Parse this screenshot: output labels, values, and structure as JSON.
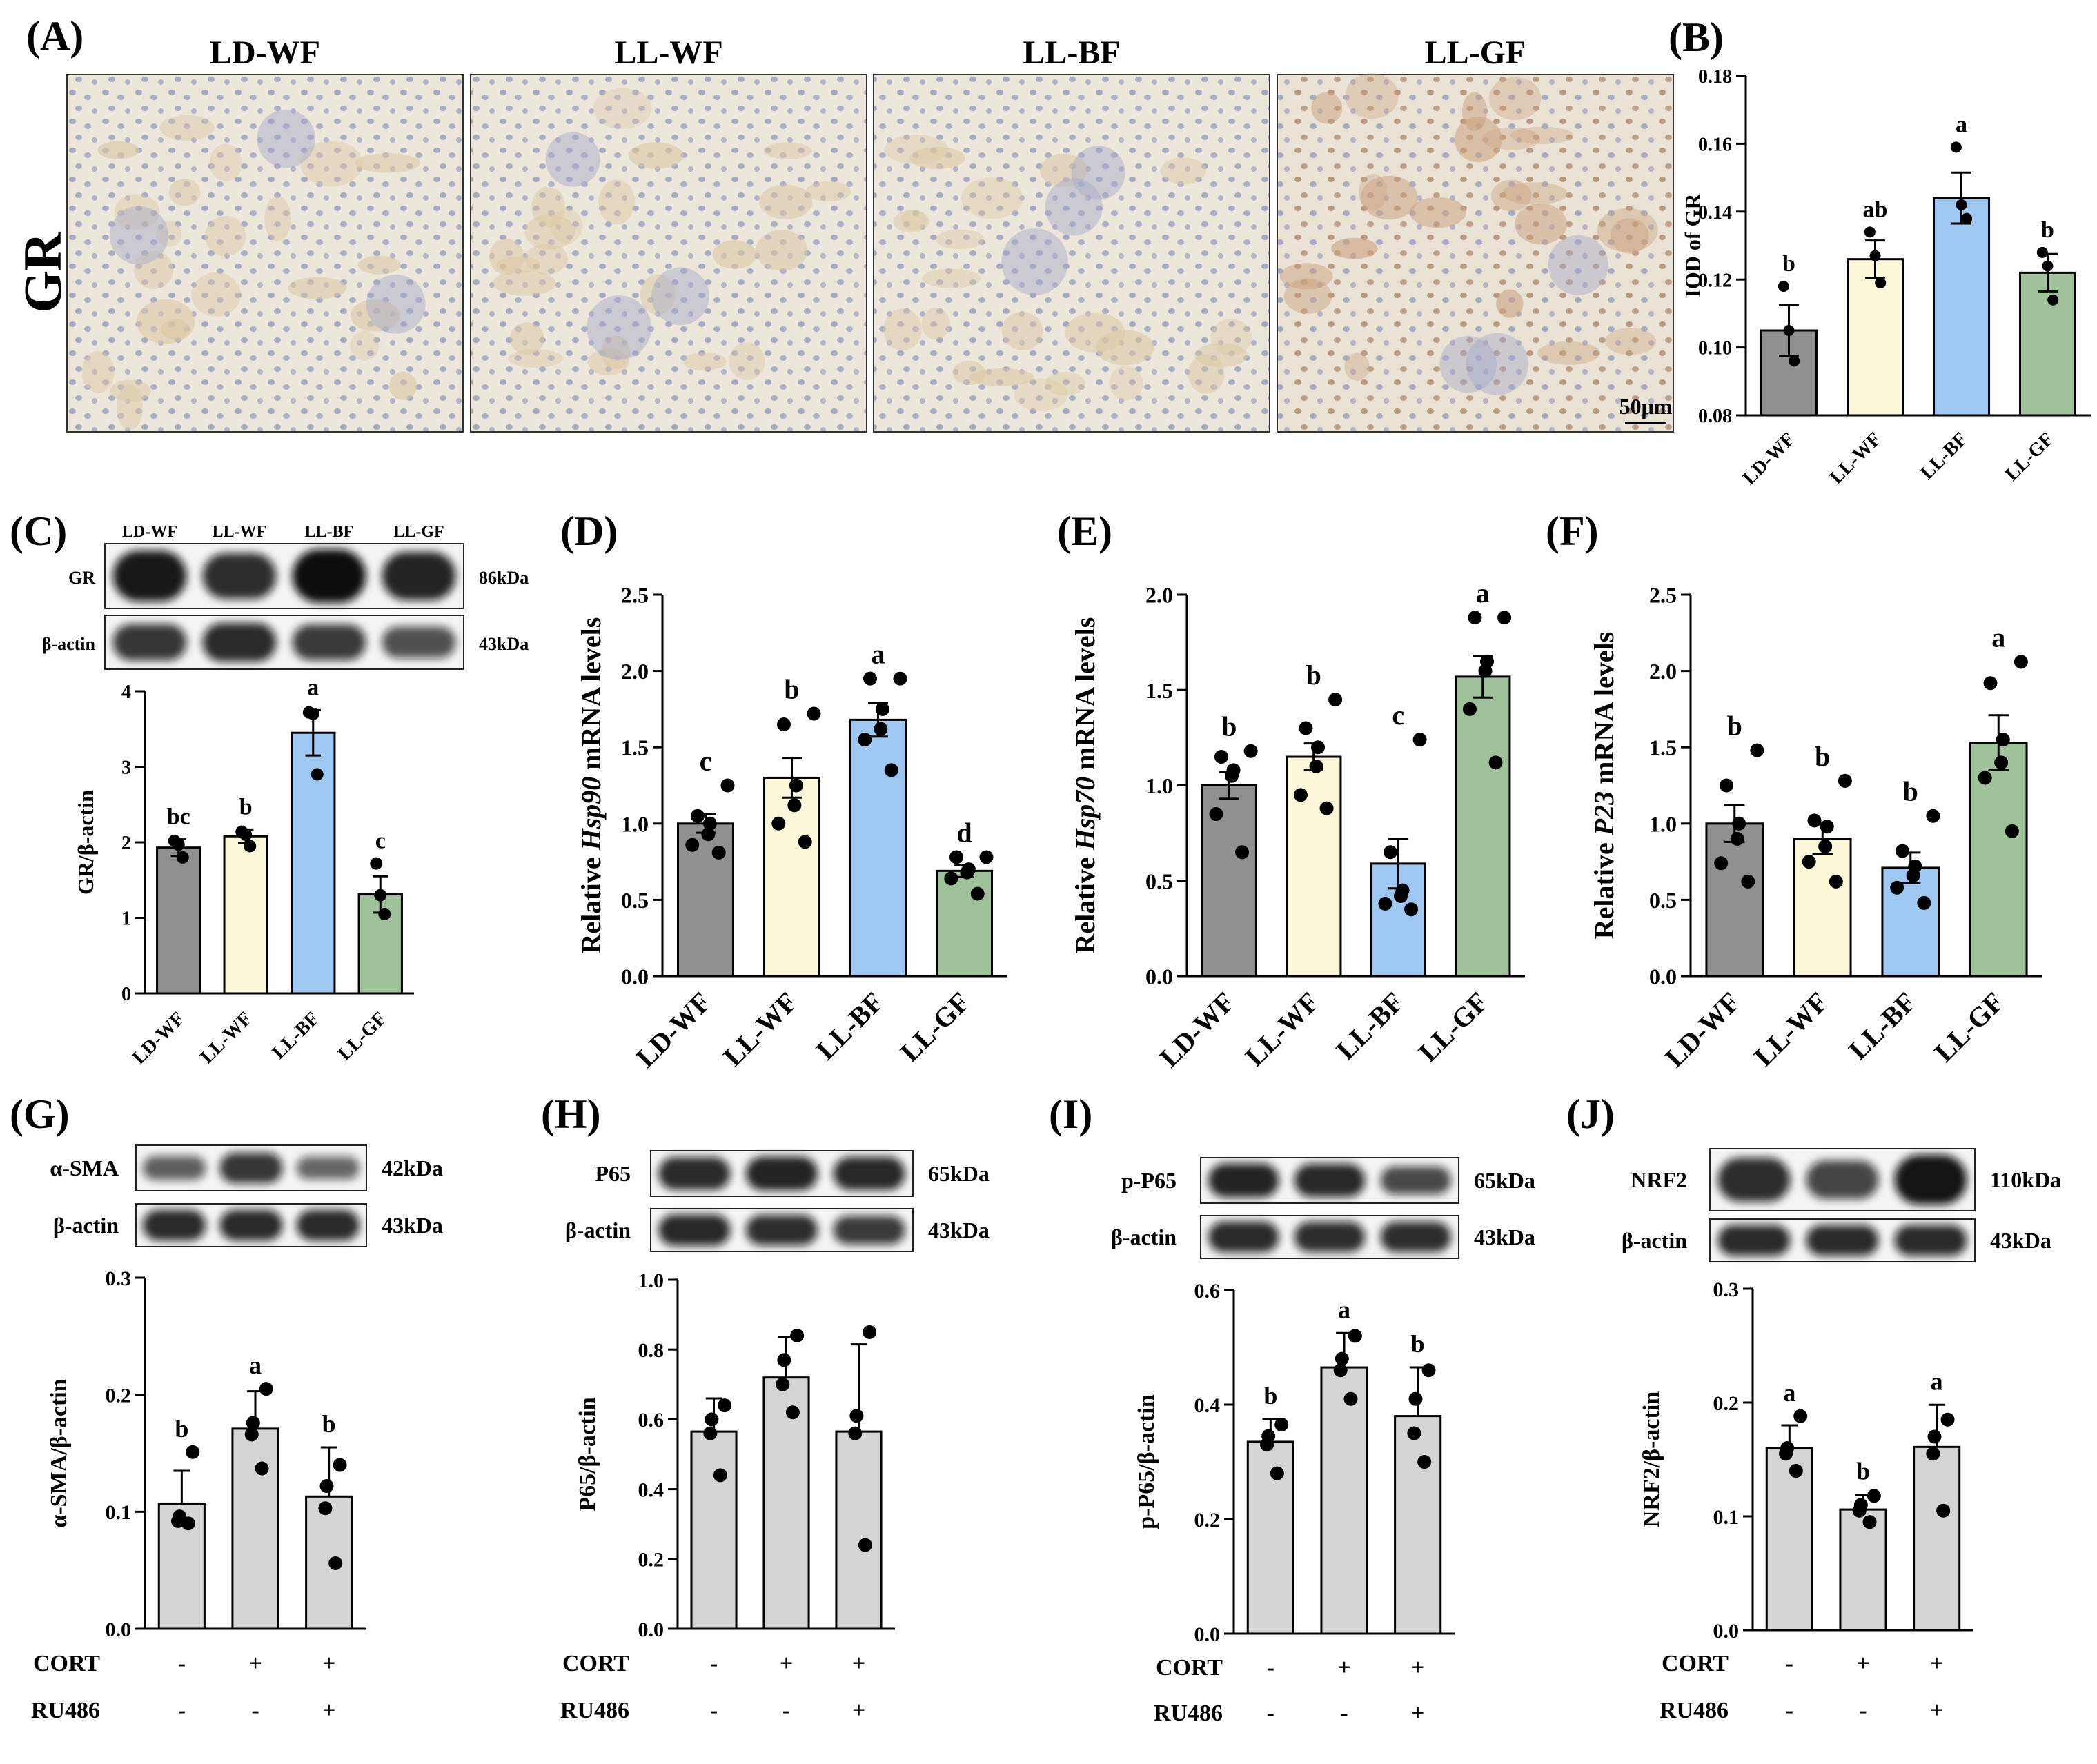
{
  "colors": {
    "LD-WF": "#909090",
    "LL-WF": "#fbf7d8",
    "LL-BF": "#9ec8f1",
    "LL-GF": "#9fc29a",
    "treatment": "#d4d4d4",
    "ihc_bg": "#ece6db",
    "ihc_nucleus": "#8e95b8",
    "ihc_tubule": "#dbc7a3",
    "ihc_gr_nucleus": "#8e5c3a"
  },
  "panelA": {
    "panel_label": "(A)",
    "row_label": "GR",
    "image_titles": [
      "LD-WF",
      "LL-WF",
      "LL-BF",
      "LL-GF"
    ],
    "scale_bar": "50μm"
  },
  "blots": {
    "C": {
      "lanes": [
        "LD-WF",
        "LL-WF",
        "LL-BF",
        "LL-GF"
      ],
      "rows": [
        {
          "name": "GR",
          "size": "86kDa",
          "intensity": [
            0.92,
            0.78,
            1.0,
            0.85
          ]
        },
        {
          "name": "β-actin",
          "size": "43kDa",
          "intensity": [
            0.72,
            0.8,
            0.7,
            0.55
          ]
        }
      ]
    },
    "G": {
      "rows": [
        {
          "name": "α-SMA",
          "size": "42kDa",
          "intensity": [
            0.45,
            0.72,
            0.4
          ]
        },
        {
          "name": "β-actin",
          "size": "43kDa",
          "intensity": [
            0.8,
            0.8,
            0.8
          ]
        }
      ]
    },
    "H": {
      "rows": [
        {
          "name": "P65",
          "size": "65kDa",
          "intensity": [
            0.8,
            0.85,
            0.82
          ]
        },
        {
          "name": "β-actin",
          "size": "43kDa",
          "intensity": [
            0.82,
            0.78,
            0.7
          ]
        }
      ]
    },
    "I": {
      "rows": [
        {
          "name": "p-P65",
          "size": "65kDa",
          "intensity": [
            0.85,
            0.82,
            0.6
          ]
        },
        {
          "name": "β-actin",
          "size": "43kDa",
          "intensity": [
            0.8,
            0.78,
            0.78
          ]
        }
      ]
    },
    "J": {
      "rows": [
        {
          "name": "NRF2",
          "size": "110kDa",
          "intensity": [
            0.78,
            0.62,
            0.95
          ]
        },
        {
          "name": "β-actin",
          "size": "43kDa",
          "intensity": [
            0.8,
            0.8,
            0.8
          ]
        }
      ]
    }
  },
  "chart_data": [
    {
      "panel": "(B)",
      "type": "bar",
      "ylabel": "IOD of GR",
      "ylim": [
        0.08,
        0.18
      ],
      "yticks": [
        "0.08",
        "0.10",
        "0.12",
        "0.14",
        "0.16",
        "0.18"
      ],
      "categories": [
        "LD-WF",
        "LL-WF",
        "LL-BF",
        "LL-GF"
      ],
      "values": [
        0.105,
        0.126,
        0.144,
        0.122
      ],
      "sem": [
        0.0075,
        0.0055,
        0.0075,
        0.0055
      ],
      "points": [
        [
          0.096,
          0.105,
          0.118
        ],
        [
          0.119,
          0.127,
          0.134
        ],
        [
          0.138,
          0.142,
          0.159
        ],
        [
          0.114,
          0.124,
          0.128
        ]
      ],
      "letters": [
        "b",
        "ab",
        "a",
        "b"
      ],
      "xlabels_rotated": true
    },
    {
      "panel": "(C)",
      "type": "bar",
      "ylabel": "GR/β-actin",
      "ylim": [
        0,
        4
      ],
      "yticks": [
        "0",
        "1",
        "2",
        "3",
        "4"
      ],
      "categories": [
        "LD-WF",
        "LL-WF",
        "LL-BF",
        "LL-GF"
      ],
      "values": [
        1.93,
        2.08,
        3.45,
        1.31
      ],
      "sem": [
        0.11,
        0.09,
        0.3,
        0.24
      ],
      "points": [
        [
          1.8,
          1.97,
          2.02
        ],
        [
          1.95,
          2.1,
          2.14
        ],
        [
          2.9,
          3.7,
          3.72
        ],
        [
          1.05,
          1.3,
          1.72
        ]
      ],
      "letters": [
        "bc",
        "b",
        "a",
        "c"
      ],
      "xlabels_rotated": true
    },
    {
      "panel": "(D)",
      "type": "bar",
      "ylabel_parts": [
        "Relative ",
        "Hsp90",
        " mRNA levels"
      ],
      "ylim": [
        0,
        2.5
      ],
      "yticks": [
        "0.0",
        "0.5",
        "1.0",
        "1.5",
        "2.0",
        "2.5"
      ],
      "categories": [
        "LD-WF",
        "LL-WF",
        "LL-BF",
        "LL-GF"
      ],
      "values": [
        1.0,
        1.3,
        1.68,
        0.69
      ],
      "sem": [
        0.06,
        0.13,
        0.11,
        0.04
      ],
      "points": [
        [
          0.81,
          0.86,
          0.93,
          1.0,
          1.05,
          1.25
        ],
        [
          0.88,
          1.0,
          1.12,
          1.25,
          1.65,
          1.72
        ],
        [
          1.35,
          1.55,
          1.62,
          1.75,
          1.95,
          1.95
        ],
        [
          0.54,
          0.64,
          0.68,
          0.7,
          0.78,
          0.78
        ]
      ],
      "letters": [
        "c",
        "b",
        "a",
        "d"
      ],
      "xlabels_rotated": true
    },
    {
      "panel": "(E)",
      "type": "bar",
      "ylabel_parts": [
        "Relative ",
        "Hsp70",
        " mRNA levels"
      ],
      "ylim": [
        0,
        2.0
      ],
      "yticks": [
        "0.0",
        "0.5",
        "1.0",
        "1.5",
        "2.0"
      ],
      "categories": [
        "LD-WF",
        "LL-WF",
        "LL-BF",
        "LL-GF"
      ],
      "values": [
        1.0,
        1.15,
        0.59,
        1.57
      ],
      "sem": [
        0.07,
        0.07,
        0.13,
        0.11
      ],
      "points": [
        [
          0.65,
          0.85,
          1.05,
          1.08,
          1.15,
          1.18
        ],
        [
          0.88,
          0.95,
          1.1,
          1.2,
          1.3,
          1.45
        ],
        [
          0.35,
          0.38,
          0.42,
          0.45,
          0.65,
          1.24
        ],
        [
          1.12,
          1.4,
          1.6,
          1.65,
          1.88,
          1.88
        ]
      ],
      "letters": [
        "b",
        "b",
        "c",
        "a"
      ],
      "xlabels_rotated": true
    },
    {
      "panel": "(F)",
      "type": "bar",
      "ylabel_parts": [
        "Relative ",
        "P23",
        " mRNA levels"
      ],
      "ylim": [
        0,
        2.5
      ],
      "yticks": [
        "0.0",
        "0.5",
        "1.0",
        "1.5",
        "2.0",
        "2.5"
      ],
      "categories": [
        "LD-WF",
        "LL-WF",
        "LL-BF",
        "LL-GF"
      ],
      "values": [
        1.0,
        0.9,
        0.71,
        1.53
      ],
      "sem": [
        0.12,
        0.1,
        0.1,
        0.18
      ],
      "points": [
        [
          0.62,
          0.74,
          0.9,
          1.0,
          1.25,
          1.48
        ],
        [
          0.62,
          0.75,
          0.85,
          0.98,
          1.02,
          1.28
        ],
        [
          0.48,
          0.58,
          0.66,
          0.72,
          0.82,
          1.05
        ],
        [
          0.95,
          1.3,
          1.4,
          1.55,
          1.92,
          2.06
        ]
      ],
      "letters": [
        "b",
        "b",
        "b",
        "a"
      ],
      "xlabels_rotated": true
    },
    {
      "panel": "(G)",
      "type": "bar",
      "ylabel": "α-SMA/β-actin",
      "ylim": [
        0,
        0.3
      ],
      "yticks": [
        "0.0",
        "0.1",
        "0.2",
        "0.3"
      ],
      "values": [
        0.107,
        0.171,
        0.113
      ],
      "sd": [
        0.028,
        0.032,
        0.042
      ],
      "points": [
        [
          0.09,
          0.092,
          0.096,
          0.151
        ],
        [
          0.137,
          0.166,
          0.176,
          0.205
        ],
        [
          0.056,
          0.103,
          0.122,
          0.14
        ]
      ],
      "letters": [
        "b",
        "a",
        "b"
      ],
      "treatments": [
        {
          "name": "CORT",
          "signs": [
            "-",
            "+",
            "+"
          ]
        },
        {
          "name": "RU486",
          "signs": [
            "-",
            "-",
            "+"
          ]
        }
      ]
    },
    {
      "panel": "(H)",
      "type": "bar",
      "ylabel": "P65/β-actin",
      "ylim": [
        0,
        1.0
      ],
      "yticks": [
        "0.0",
        "0.2",
        "0.4",
        "0.6",
        "0.8",
        "1.0"
      ],
      "values": [
        0.565,
        0.72,
        0.565
      ],
      "sd": [
        0.095,
        0.115,
        0.25
      ],
      "points": [
        [
          0.44,
          0.56,
          0.6,
          0.64
        ],
        [
          0.62,
          0.7,
          0.77,
          0.84
        ],
        [
          0.24,
          0.56,
          0.61,
          0.85
        ]
      ],
      "letters": [
        "",
        "",
        ""
      ],
      "treatments": [
        {
          "name": "CORT",
          "signs": [
            "-",
            "+",
            "+"
          ]
        },
        {
          "name": "RU486",
          "signs": [
            "-",
            "-",
            "+"
          ]
        }
      ]
    },
    {
      "panel": "(I)",
      "type": "bar",
      "ylabel": "p-P65/β-actin",
      "ylim": [
        0,
        0.6
      ],
      "yticks": [
        "0.0",
        "0.2",
        "0.4",
        "0.6"
      ],
      "values": [
        0.335,
        0.465,
        0.38
      ],
      "sd": [
        0.04,
        0.06,
        0.085
      ],
      "points": [
        [
          0.28,
          0.33,
          0.345,
          0.365
        ],
        [
          0.41,
          0.46,
          0.48,
          0.52
        ],
        [
          0.3,
          0.35,
          0.41,
          0.46
        ]
      ],
      "letters": [
        "b",
        "a",
        "b"
      ],
      "treatments": [
        {
          "name": "CORT",
          "signs": [
            "-",
            "+",
            "+"
          ]
        },
        {
          "name": "RU486",
          "signs": [
            "-",
            "-",
            "+"
          ]
        }
      ]
    },
    {
      "panel": "(J)",
      "type": "bar",
      "ylabel": "NRF2/β-actin",
      "ylim": [
        0,
        0.3
      ],
      "yticks": [
        "0.0",
        "0.1",
        "0.2",
        "0.3"
      ],
      "values": [
        0.16,
        0.106,
        0.161
      ],
      "sd": [
        0.02,
        0.013,
        0.037
      ],
      "points": [
        [
          0.14,
          0.155,
          0.16,
          0.188
        ],
        [
          0.095,
          0.105,
          0.11,
          0.118
        ],
        [
          0.105,
          0.155,
          0.17,
          0.185
        ]
      ],
      "letters": [
        "a",
        "b",
        "a"
      ],
      "treatments": [
        {
          "name": "CORT",
          "signs": [
            "-",
            "+",
            "+"
          ]
        },
        {
          "name": "RU486",
          "signs": [
            "-",
            "-",
            "+"
          ]
        }
      ]
    }
  ]
}
